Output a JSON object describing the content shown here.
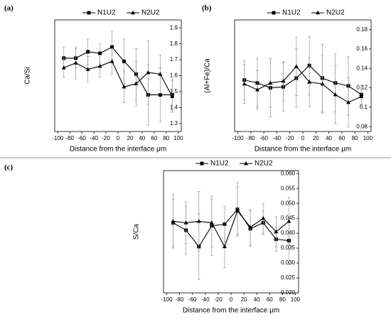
{
  "chart_data": [
    {
      "type": "line",
      "panel_label": "(a)",
      "xlabel": "Distance from the interface μm",
      "ylabel": "Ca/Si",
      "x": [
        -90,
        -70,
        -50,
        -30,
        -10,
        10,
        30,
        50,
        70,
        90
      ],
      "series": [
        {
          "name": "N1U2",
          "color": "#000000",
          "marker": "square",
          "values": [
            1.71,
            1.71,
            1.75,
            1.74,
            1.78,
            1.69,
            1.61,
            1.48,
            1.48,
            1.48
          ],
          "errors": [
            0.07,
            0.06,
            0.08,
            0.06,
            0.1,
            0.14,
            0.16,
            0.19,
            0.17,
            0.1
          ]
        },
        {
          "name": "N2U2",
          "color": "#000000",
          "marker": "triangle",
          "values": [
            1.65,
            1.68,
            1.64,
            1.66,
            1.69,
            1.53,
            1.55,
            1.62,
            1.61,
            1.47
          ],
          "errors": [
            0.06,
            0.1,
            0.08,
            0.07,
            0.08,
            0.1,
            0.14,
            0.2,
            0.12,
            0.1
          ]
        }
      ],
      "xlim": [
        -105,
        105
      ],
      "xticks": [
        -100,
        -80,
        -60,
        -40,
        -20,
        0,
        20,
        40,
        60,
        80,
        100
      ],
      "ylim": [
        1.25,
        1.95
      ],
      "yticks": [
        1.3,
        1.4,
        1.5,
        1.6,
        1.7,
        1.8,
        1.9
      ]
    },
    {
      "type": "line",
      "panel_label": "(b)",
      "xlabel": "Distance from the interface μm",
      "ylabel": "(Al+Fe)/Ca",
      "x": [
        -90,
        -70,
        -50,
        -30,
        -10,
        10,
        30,
        50,
        70,
        90
      ],
      "series": [
        {
          "name": "N1U2",
          "color": "#000000",
          "marker": "square",
          "values": [
            0.128,
            0.125,
            0.12,
            0.121,
            0.13,
            0.143,
            0.13,
            0.125,
            0.122,
            0.113
          ],
          "errors": [
            0.02,
            0.025,
            0.03,
            0.025,
            0.03,
            0.03,
            0.035,
            0.03,
            0.03,
            0.01
          ]
        },
        {
          "name": "N2U2",
          "color": "#000000",
          "marker": "triangle",
          "values": [
            0.124,
            0.118,
            0.125,
            0.127,
            0.142,
            0.126,
            0.124,
            0.113,
            0.105,
            0.111
          ],
          "errors": [
            0.02,
            0.02,
            0.025,
            0.02,
            0.03,
            0.025,
            0.03,
            0.03,
            0.025,
            0.01
          ]
        }
      ],
      "xlim": [
        -105,
        105
      ],
      "xticks": [
        -100,
        -80,
        -60,
        -40,
        -20,
        0,
        20,
        40,
        60,
        80,
        100
      ],
      "ylim": [
        0.075,
        0.19
      ],
      "yticks": [
        0.08,
        0.1,
        0.12,
        0.14,
        0.16,
        0.18
      ]
    },
    {
      "type": "line",
      "panel_label": "(c)",
      "xlabel": "Distance from the interface μm",
      "ylabel": "S/Ca",
      "x": [
        -90,
        -70,
        -50,
        -30,
        -10,
        10,
        30,
        50,
        70,
        90
      ],
      "series": [
        {
          "name": "N1U2",
          "color": "#000000",
          "marker": "square",
          "values": [
            0.0435,
            0.041,
            0.0355,
            0.0425,
            0.043,
            0.048,
            0.0415,
            0.0435,
            0.038,
            0.0375
          ],
          "errors": [
            0.008,
            0.008,
            0.011,
            0.01,
            0.006,
            0.009,
            0.006,
            0.004,
            0.004,
            0.008
          ]
        },
        {
          "name": "N2U2",
          "color": "#000000",
          "marker": "triangle",
          "values": [
            0.044,
            0.0435,
            0.044,
            0.0435,
            0.0355,
            0.0475,
            0.042,
            0.045,
            0.0405,
            0.044
          ],
          "errors": [
            0.009,
            0.007,
            0.01,
            0.008,
            0.007,
            0.008,
            0.006,
            0.005,
            0.005,
            0.008
          ]
        }
      ],
      "xlim": [
        -105,
        105
      ],
      "xticks": [
        -100,
        -80,
        -60,
        -40,
        -20,
        0,
        20,
        40,
        60,
        80,
        100
      ],
      "ylim": [
        0.02,
        0.061
      ],
      "yticks": [
        {
          "value": 0.02,
          "label": "0.020"
        },
        {
          "value": 0.025,
          "label": "0.025"
        },
        {
          "value": 0.03,
          "label": "0.030"
        },
        {
          "value": 0.035,
          "label": "0.035"
        },
        {
          "value": 0.04,
          "label": "0.040"
        },
        {
          "value": 0.045,
          "label": "0.045"
        },
        {
          "value": 0.05,
          "label": "0.050"
        },
        {
          "value": 0.055,
          "label": "0.055"
        },
        {
          "value": 0.06,
          "label": "0.060"
        }
      ]
    }
  ]
}
